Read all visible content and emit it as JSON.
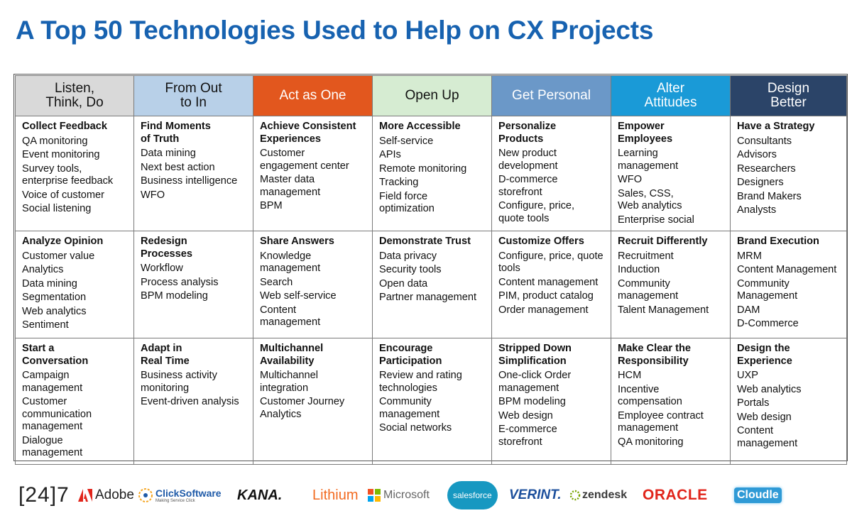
{
  "title": "A Top 50 Technologies Used to Help on CX Projects",
  "columns": [
    {
      "header": [
        "Listen,",
        "Think, Do"
      ],
      "header_bg": "#d9d9d9",
      "header_fg": "#111111",
      "cells": [
        {
          "title": [
            "Collect Feedback"
          ],
          "items": [
            [
              "QA monitoring"
            ],
            [
              "Event monitoring"
            ],
            [
              "Survey tools,",
              "enterprise feedback"
            ],
            [
              "Voice of customer"
            ],
            [
              "Social listening"
            ]
          ]
        },
        {
          "title": [
            "Analyze Opinion"
          ],
          "items": [
            [
              "Customer value"
            ],
            [
              "Analytics"
            ],
            [
              "Data mining"
            ],
            [
              "Segmentation"
            ],
            [
              "Web analytics"
            ],
            [
              "Sentiment"
            ]
          ]
        },
        {
          "title": [
            "Start a",
            "Conversation"
          ],
          "items": [
            [
              "Campaign",
              "management"
            ],
            [
              "Customer",
              "communication",
              "management"
            ],
            [
              "Dialogue",
              "management"
            ]
          ]
        }
      ]
    },
    {
      "header": [
        "From Out",
        "to In"
      ],
      "header_bg": "#b8d0e8",
      "header_fg": "#111111",
      "cells": [
        {
          "title": [
            "Find Moments",
            "of Truth"
          ],
          "items": [
            [
              "Data mining"
            ],
            [
              "Next best action"
            ],
            [
              "Business intelligence"
            ],
            [
              "WFO"
            ]
          ]
        },
        {
          "title": [
            "Redesign",
            "Processes"
          ],
          "items": [
            [
              "Workflow"
            ],
            [
              "Process analysis"
            ],
            [
              "BPM modeling"
            ]
          ]
        },
        {
          "title": [
            "Adapt in",
            "Real Time"
          ],
          "items": [
            [
              "Business activity",
              "monitoring"
            ],
            [
              "Event-driven analysis"
            ]
          ]
        }
      ]
    },
    {
      "header": [
        "Act as One"
      ],
      "header_bg": "#e2571e",
      "header_fg": "#ffffff",
      "cells": [
        {
          "title": [
            "Achieve Consistent",
            "Experiences"
          ],
          "items": [
            [
              "Customer",
              "engagement center"
            ],
            [
              "Master data",
              "management"
            ],
            [
              "BPM"
            ]
          ]
        },
        {
          "title": [
            "Share Answers"
          ],
          "items": [
            [
              "Knowledge",
              "management"
            ],
            [
              "Search"
            ],
            [
              "Web self-service"
            ],
            [
              "Content",
              "management"
            ]
          ]
        },
        {
          "title": [
            "Multichannel",
            "Availability"
          ],
          "items": [
            [
              "Multichannel",
              "integration"
            ],
            [
              "Customer Journey",
              "Analytics"
            ]
          ]
        }
      ]
    },
    {
      "header": [
        "Open Up"
      ],
      "header_bg": "#d6ecd2",
      "header_fg": "#111111",
      "cells": [
        {
          "title": [
            "More Accessible"
          ],
          "items": [
            [
              "Self-service"
            ],
            [
              "APIs"
            ],
            [
              "Remote monitoring"
            ],
            [
              "Tracking"
            ],
            [
              "Field force",
              "optimization"
            ]
          ]
        },
        {
          "title": [
            "Demonstrate Trust"
          ],
          "items": [
            [
              "Data privacy"
            ],
            [
              "Security tools"
            ],
            [
              "Open data"
            ],
            [
              "Partner management"
            ]
          ]
        },
        {
          "title": [
            "Encourage",
            "Participation"
          ],
          "items": [
            [
              "Review and rating",
              "technologies"
            ],
            [
              "Community",
              "management"
            ],
            [
              "Social networks"
            ]
          ]
        }
      ]
    },
    {
      "header": [
        "Get Personal"
      ],
      "header_bg": "#6b98c8",
      "header_fg": "#ffffff",
      "cells": [
        {
          "title": [
            "Personalize",
            "Products"
          ],
          "items": [
            [
              "New product",
              "development"
            ],
            [
              "D-commerce",
              "storefront"
            ],
            [
              "Configure, price,",
              "quote tools"
            ]
          ]
        },
        {
          "title": [
            "Customize Offers"
          ],
          "items": [
            [
              "Configure, price, quote",
              "tools"
            ],
            [
              "Content management"
            ],
            [
              "PIM, product catalog"
            ],
            [
              "Order management"
            ]
          ]
        },
        {
          "title": [
            "Stripped Down",
            "Simplification"
          ],
          "items": [
            [
              "One-click Order",
              "management"
            ],
            [
              "BPM modeling"
            ],
            [
              "Web design"
            ],
            [
              "E-commerce",
              "storefront"
            ]
          ]
        }
      ]
    },
    {
      "header": [
        "Alter",
        "Attitudes"
      ],
      "header_bg": "#1a9ad7",
      "header_fg": "#ffffff",
      "cells": [
        {
          "title": [
            "Empower",
            "Employees"
          ],
          "items": [
            [
              "Learning",
              "management"
            ],
            [
              "WFO"
            ],
            [
              "Sales, CSS,",
              "Web analytics"
            ],
            [
              "Enterprise social"
            ]
          ]
        },
        {
          "title": [
            "Recruit Differently"
          ],
          "items": [
            [
              "Recruitment"
            ],
            [
              "Induction"
            ],
            [
              "Community",
              "management"
            ],
            [
              "Talent Management"
            ]
          ]
        },
        {
          "title": [
            "Make Clear the",
            "Responsibility"
          ],
          "items": [
            [
              "HCM"
            ],
            [
              "Incentive",
              "compensation"
            ],
            [
              "Employee contract",
              "management"
            ],
            [
              "QA monitoring"
            ]
          ]
        }
      ]
    },
    {
      "header": [
        "Design",
        "Better"
      ],
      "header_bg": "#2b4468",
      "header_fg": "#ffffff",
      "cells": [
        {
          "title": [
            "Have a Strategy"
          ],
          "items": [
            [
              "Consultants"
            ],
            [
              "Advisors"
            ],
            [
              "Researchers"
            ],
            [
              "Designers"
            ],
            [
              "Brand Makers"
            ],
            [
              "Analysts"
            ]
          ]
        },
        {
          "title": [
            "Brand Execution"
          ],
          "items": [
            [
              "MRM"
            ],
            [
              "Content Management"
            ],
            [
              "Community",
              "Management"
            ],
            [
              "DAM"
            ],
            [
              "D-Commerce"
            ]
          ]
        },
        {
          "title": [
            "Design the",
            "Experience"
          ],
          "items": [
            [
              "UXP"
            ],
            [
              "Web analytics"
            ],
            [
              "Portals"
            ],
            [
              "Web design"
            ],
            [
              "Content",
              "management"
            ]
          ]
        }
      ]
    }
  ],
  "logos": {
    "l247": "[24]7",
    "adobe": "Adobe",
    "clicksoftware": "ClickSoftware",
    "clicksoftware_tag": "Making Service Click",
    "kana": "KANA.",
    "lithium": "Lithium",
    "microsoft": "Microsoft",
    "salesforce": "salesforce",
    "verint": "VERINT.",
    "zendesk": "zendesk",
    "oracle": "ORACLE",
    "cloudle": "Cloudle"
  },
  "colors": {
    "title": "#1762b0",
    "border": "#7a7a7a"
  }
}
